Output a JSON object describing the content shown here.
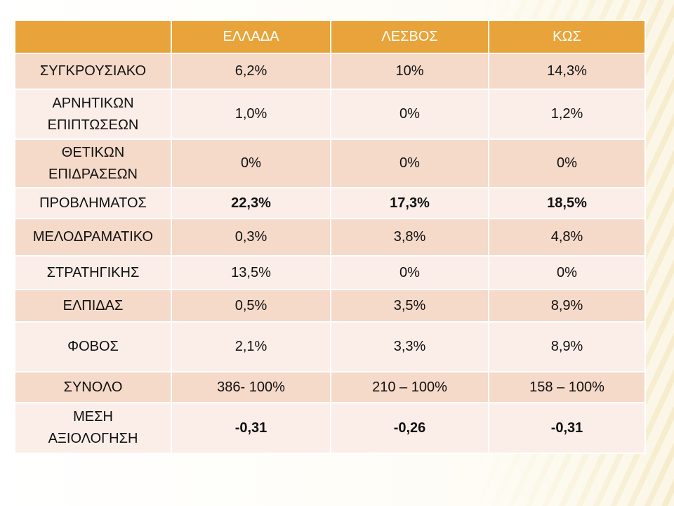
{
  "table": {
    "columns": [
      "ΕΛΛΑΔΑ",
      "ΛΕΣΒΟΣ",
      "ΚΩΣ"
    ],
    "rows": [
      {
        "label": "ΣΥΓΚΡΟΥΣΙΑΚΟ",
        "cells": [
          "6,2%",
          "10%",
          "14,3%"
        ],
        "bold": false
      },
      {
        "label": "ΑΡΝΗΤΙΚΩΝ\nΕΠΙΠΤΩΣΕΩΝ",
        "cells": [
          "1,0%",
          "0%",
          "1,2%"
        ],
        "bold": false
      },
      {
        "label": "ΘΕΤΙΚΩΝ\nΕΠΙΔΡΑΣΕΩΝ",
        "cells": [
          "0%",
          "0%",
          "0%"
        ],
        "bold": false
      },
      {
        "label": "ΠΡΟΒΛΗΜΑΤΟΣ",
        "cells": [
          "22,3%",
          "17,3%",
          "18,5%"
        ],
        "bold": true
      },
      {
        "label": "ΜΕΛΟΔΡΑΜΑΤΙΚΟ",
        "cells": [
          "0,3%",
          "3,8%",
          "4,8%"
        ],
        "bold": false
      },
      {
        "label": "ΣΤΡΑΤΗΓΙΚΗΣ",
        "cells": [
          "13,5%",
          "0%",
          "0%"
        ],
        "bold": false
      },
      {
        "label": "ΕΛΠΙΔΑΣ",
        "cells": [
          "0,5%",
          "3,5%",
          "8,9%"
        ],
        "bold": false
      },
      {
        "label": "ΦΟΒΟΣ",
        "cells": [
          "2,1%",
          "3,3%",
          "8,9%"
        ],
        "bold": false
      },
      {
        "label": "ΣΥΝΟΛΟ",
        "cells": [
          "386- 100%",
          "210 – 100%",
          "158 – 100%"
        ],
        "bold": false
      },
      {
        "label": "ΜΕΣΗ\nΑΞΙΟΛΟΓΗΣΗ",
        "cells": [
          "-0,31",
          "-0,26",
          "-0,31"
        ],
        "bold": true
      }
    ]
  }
}
